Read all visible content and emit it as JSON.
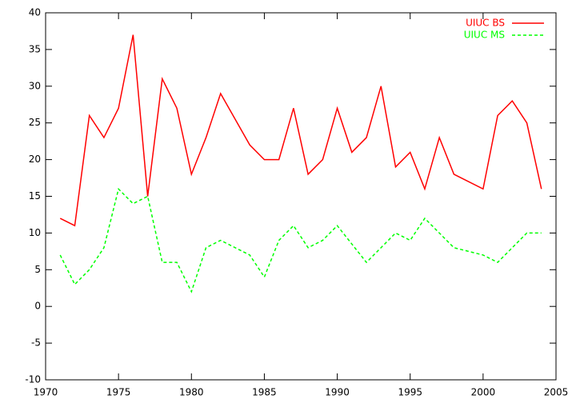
{
  "chart_data": {
    "type": "line",
    "x": [
      1971,
      1972,
      1973,
      1974,
      1975,
      1976,
      1977,
      1978,
      1979,
      1980,
      1981,
      1982,
      1984,
      1985,
      1986,
      1987,
      1988,
      1989,
      1990,
      1991,
      1992,
      1993,
      1994,
      1995,
      1996,
      1997,
      1998,
      2000,
      2001,
      2002,
      2003,
      2004
    ],
    "series": [
      {
        "name": "UIUC BS",
        "color": "#ff0000",
        "dash": false,
        "values": [
          12,
          11,
          26,
          23,
          27,
          37,
          15,
          31,
          27,
          18,
          23,
          29,
          22,
          20,
          20,
          27,
          18,
          20,
          27,
          21,
          23,
          30,
          19,
          21,
          16,
          23,
          18,
          16,
          26,
          28,
          25,
          16
        ]
      },
      {
        "name": "UIUC MS",
        "color": "#00ff00",
        "dash": true,
        "values": [
          7,
          3,
          5,
          8,
          16,
          14,
          15,
          6,
          6,
          2,
          8,
          9,
          7,
          4,
          9,
          11,
          8,
          9,
          11,
          8.5,
          6,
          8,
          10,
          9,
          12,
          10,
          8,
          7,
          6,
          8,
          10,
          10
        ]
      }
    ],
    "xlim": [
      1970,
      2005
    ],
    "xticks": [
      1970,
      1975,
      1980,
      1985,
      1990,
      1995,
      2000,
      2005
    ],
    "ylim": [
      -10,
      40
    ],
    "yticks": [
      -10,
      -5,
      0,
      5,
      10,
      15,
      20,
      25,
      30,
      35,
      40
    ],
    "legend": "upper-right"
  }
}
